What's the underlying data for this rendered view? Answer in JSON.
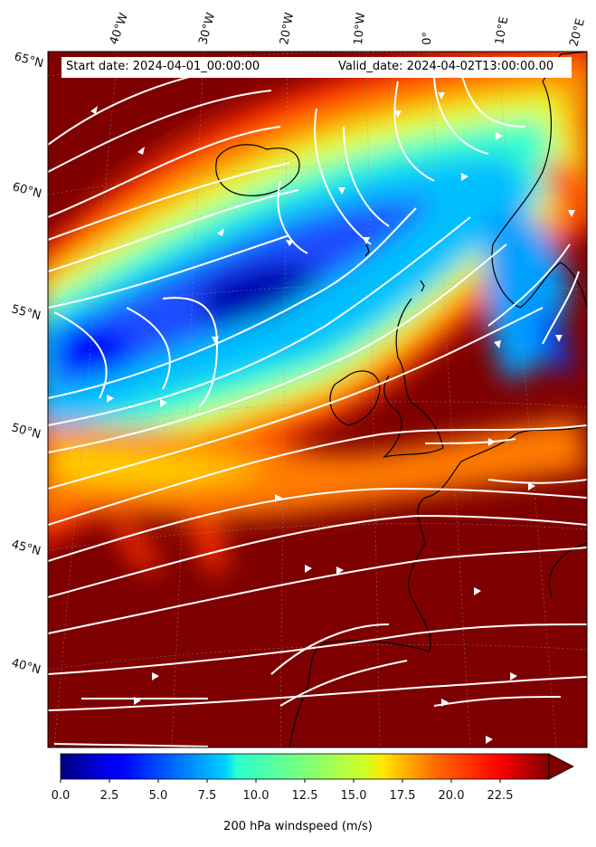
{
  "annotation": {
    "start_label": "Start date: 2024-04-01_00:00:00",
    "valid_label": "Valid_date: 2024-04-02T13:00:00.00"
  },
  "graticule": {
    "lon_labels": [
      "40°W",
      "30°W",
      "20°W",
      "10°W",
      "0°",
      "10°E",
      "20°E"
    ],
    "lat_labels": [
      "65°N",
      "60°N",
      "55°N",
      "50°N",
      "45°N",
      "40°N"
    ]
  },
  "colorbar": {
    "title": "200 hPa windspeed (m/s)",
    "ticks": [
      "0.0",
      "2.5",
      "5.0",
      "7.5",
      "10.0",
      "12.5",
      "15.0",
      "17.5",
      "20.0",
      "22.5"
    ],
    "min": 0,
    "max": 25,
    "extend": "max",
    "colormap": "jet"
  },
  "colors": {
    "land_outline": "#000000",
    "streamline": "#ffffff",
    "max_color": "#7f0000"
  }
}
